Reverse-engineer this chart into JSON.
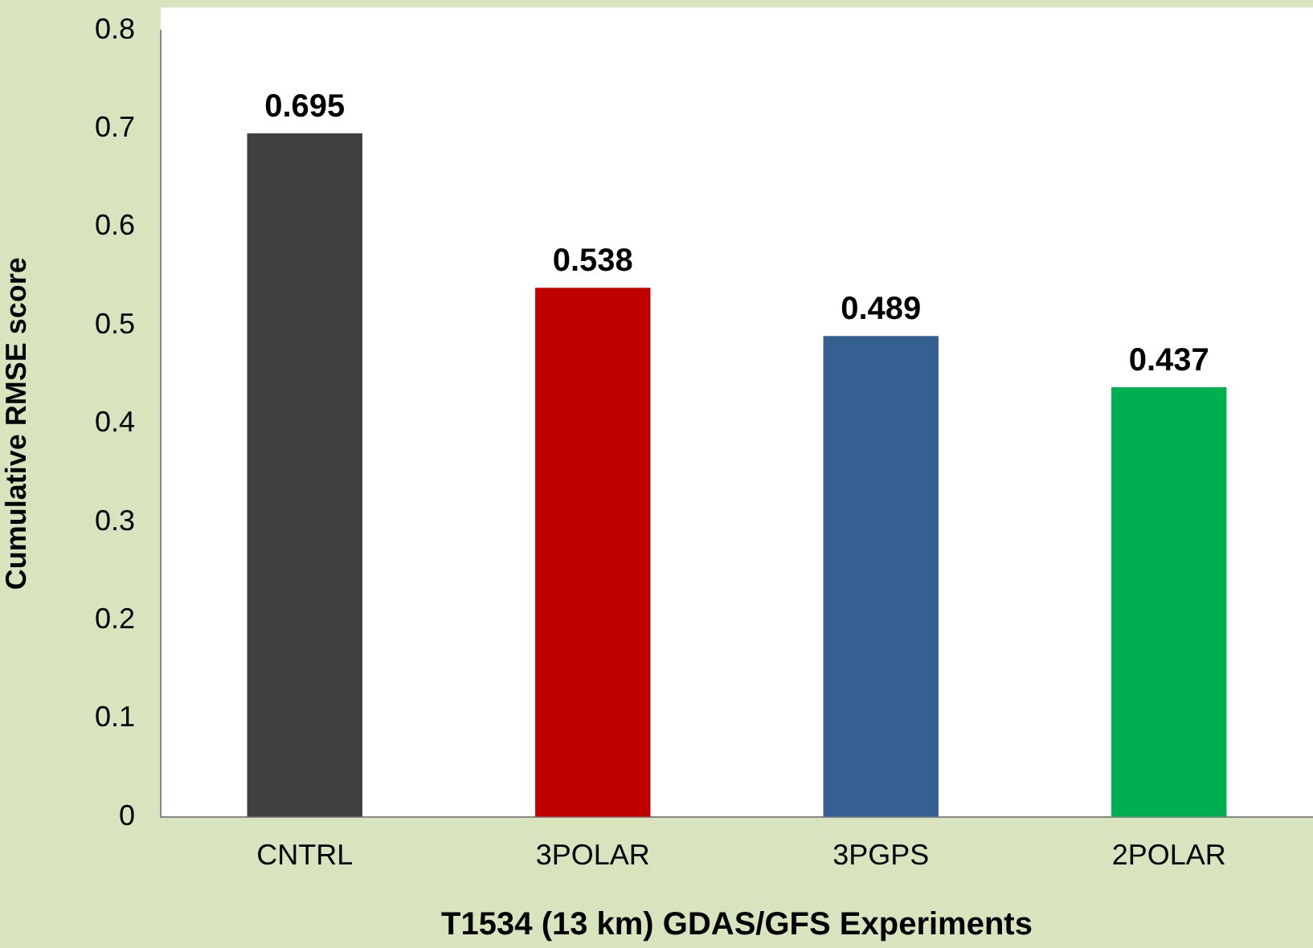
{
  "chart_data": {
    "type": "bar",
    "xlabel": "T1534 (13 km) GDAS/GFS Experiments",
    "ylabel": "Cumulative RMSE score",
    "categories": [
      "CNTRL",
      "3POLAR",
      "3PGPS",
      "2POLAR"
    ],
    "values": [
      0.695,
      0.538,
      0.489,
      0.437
    ],
    "colors": [
      "#404040",
      "#c00000",
      "#376092",
      "#00b050"
    ],
    "ylim": [
      0,
      0.8
    ],
    "yticks": [
      0,
      0.1,
      0.2,
      0.3,
      0.4,
      0.5,
      0.6,
      0.7,
      0.8
    ],
    "grid": false,
    "legend": false,
    "data_labels": true
  }
}
